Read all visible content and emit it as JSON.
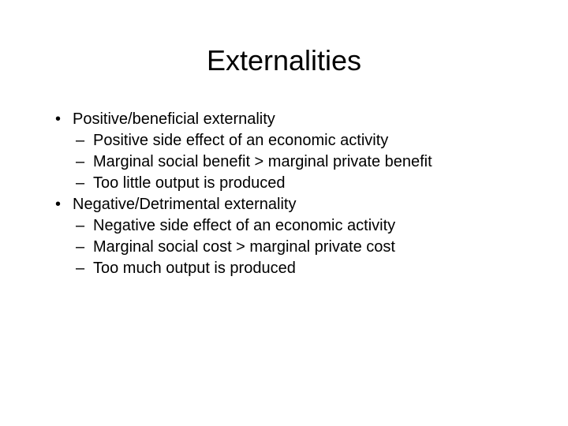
{
  "title": "Externalities",
  "title_fontsize": 36,
  "body_fontsize": 20,
  "text_color": "#000000",
  "background_color": "#ffffff",
  "bullets": {
    "b1": "Positive/beneficial externality",
    "b1a": "Positive side effect of an economic activity",
    "b1b": "Marginal social benefit > marginal private benefit",
    "b1c": "Too little output is produced",
    "b2": "Negative/Detrimental externality",
    "b2a": "Negative side effect of an economic activity",
    "b2b": "Marginal social cost > marginal private cost",
    "b2c": "Too much output is produced"
  }
}
